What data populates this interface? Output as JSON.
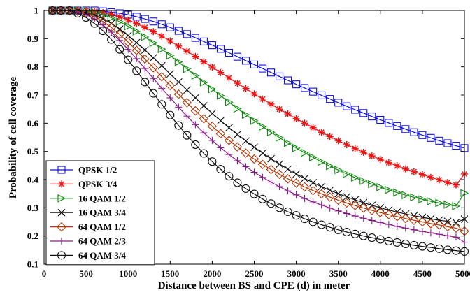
{
  "chart_data": {
    "type": "line",
    "title": "",
    "xlabel": "Distance between BS and CPE (d) in meter",
    "ylabel": "Probability of cell coverage",
    "xlim": [
      0,
      5000
    ],
    "ylim": [
      0.1,
      1
    ],
    "xticks": [
      0,
      500,
      1000,
      1500,
      2000,
      2500,
      3000,
      3500,
      4000,
      4500,
      5000
    ],
    "yticks": [
      0.1,
      0.2,
      0.3,
      0.4,
      0.5,
      0.6,
      0.7,
      0.8,
      0.9,
      1
    ],
    "xtick_labels": [
      "0",
      "500",
      "1000",
      "1500",
      "2000",
      "2500",
      "3000",
      "3500",
      "4000",
      "4500",
      "5000"
    ],
    "ytick_labels": [
      "0.1",
      "0.2",
      "0.3",
      "0.4",
      "0.5",
      "0.6",
      "0.7",
      "0.8",
      "0.9",
      "1"
    ],
    "legend_position": "bottom-left",
    "grid": false,
    "x": [
      100,
      200,
      300,
      400,
      500,
      600,
      700,
      800,
      900,
      1000,
      1100,
      1200,
      1300,
      1400,
      1500,
      1600,
      1700,
      1800,
      1900,
      2000,
      2100,
      2200,
      2300,
      2400,
      2500,
      2600,
      2700,
      2800,
      2900,
      3000,
      3100,
      3200,
      3300,
      3400,
      3500,
      3600,
      3700,
      3800,
      3900,
      4000,
      4100,
      4200,
      4300,
      4400,
      4500,
      4600,
      4700,
      4800,
      4900,
      5000
    ],
    "series": [
      {
        "name": "QPSK 1/2",
        "color": "#1010e0",
        "marker": "square",
        "values": [
          1,
          1,
          1,
          1,
          1,
          1,
          0.997,
          0.994,
          0.99,
          0.985,
          0.978,
          0.97,
          0.961,
          0.951,
          0.94,
          0.928,
          0.916,
          0.903,
          0.89,
          0.877,
          0.864,
          0.85,
          0.836,
          0.822,
          0.808,
          0.794,
          0.78,
          0.766,
          0.752,
          0.738,
          0.725,
          0.712,
          0.699,
          0.686,
          0.673,
          0.66,
          0.648,
          0.636,
          0.624,
          0.612,
          0.601,
          0.59,
          0.579,
          0.568,
          0.558,
          0.548,
          0.538,
          0.529,
          0.52,
          0.512
        ]
      },
      {
        "name": "QPSK 3/4",
        "color": "#ee1111",
        "marker": "asterisk",
        "values": [
          1,
          1,
          1,
          1,
          1,
          0.997,
          0.993,
          0.986,
          0.977,
          0.966,
          0.954,
          0.94,
          0.925,
          0.909,
          0.892,
          0.874,
          0.856,
          0.837,
          0.818,
          0.799,
          0.78,
          0.761,
          0.742,
          0.723,
          0.704,
          0.686,
          0.668,
          0.65,
          0.633,
          0.616,
          0.6,
          0.584,
          0.568,
          0.553,
          0.538,
          0.524,
          0.51,
          0.497,
          0.484,
          0.472,
          0.46,
          0.449,
          0.438,
          0.428,
          0.418,
          0.408,
          0.399,
          0.39,
          0.381,
          0.42
        ]
      },
      {
        "name": "16 QAM 1/2",
        "color": "#118811",
        "marker": "triangle-right",
        "values": [
          1,
          1,
          1,
          1,
          0.998,
          0.993,
          0.985,
          0.974,
          0.96,
          0.944,
          0.926,
          0.906,
          0.885,
          0.863,
          0.84,
          0.817,
          0.793,
          0.769,
          0.745,
          0.721,
          0.698,
          0.675,
          0.652,
          0.63,
          0.609,
          0.588,
          0.568,
          0.549,
          0.53,
          0.512,
          0.495,
          0.479,
          0.463,
          0.448,
          0.434,
          0.42,
          0.407,
          0.395,
          0.384,
          0.373,
          0.363,
          0.354,
          0.345,
          0.337,
          0.33,
          0.323,
          0.317,
          0.311,
          0.306,
          0.352
        ]
      },
      {
        "name": "16 QAM 3/4",
        "color": "#111111",
        "marker": "x",
        "values": [
          1,
          1,
          1,
          0.998,
          0.993,
          0.984,
          0.971,
          0.954,
          0.934,
          0.911,
          0.886,
          0.86,
          0.832,
          0.804,
          0.775,
          0.746,
          0.718,
          0.69,
          0.662,
          0.635,
          0.609,
          0.584,
          0.56,
          0.537,
          0.515,
          0.494,
          0.474,
          0.455,
          0.437,
          0.42,
          0.404,
          0.389,
          0.375,
          0.362,
          0.35,
          0.339,
          0.328,
          0.318,
          0.309,
          0.3,
          0.292,
          0.285,
          0.278,
          0.272,
          0.266,
          0.261,
          0.256,
          0.252,
          0.248,
          0.26
        ]
      },
      {
        "name": "64 QAM 1/2",
        "color": "#b03a0a",
        "marker": "diamond",
        "values": [
          1,
          1,
          1,
          0.997,
          0.99,
          0.978,
          0.961,
          0.94,
          0.915,
          0.888,
          0.859,
          0.828,
          0.797,
          0.765,
          0.734,
          0.703,
          0.673,
          0.644,
          0.616,
          0.589,
          0.563,
          0.539,
          0.516,
          0.494,
          0.473,
          0.454,
          0.436,
          0.419,
          0.403,
          0.388,
          0.374,
          0.361,
          0.349,
          0.338,
          0.327,
          0.317,
          0.308,
          0.299,
          0.291,
          0.283,
          0.276,
          0.269,
          0.262,
          0.256,
          0.25,
          0.244,
          0.239,
          0.233,
          0.228,
          0.217
        ]
      },
      {
        "name": "64 QAM 2/3",
        "color": "#8a1a8a",
        "marker": "plus",
        "values": [
          1,
          1,
          1,
          0.995,
          0.985,
          0.97,
          0.949,
          0.923,
          0.894,
          0.862,
          0.829,
          0.794,
          0.759,
          0.724,
          0.69,
          0.657,
          0.625,
          0.595,
          0.566,
          0.539,
          0.513,
          0.489,
          0.467,
          0.446,
          0.426,
          0.408,
          0.391,
          0.375,
          0.36,
          0.346,
          0.333,
          0.321,
          0.31,
          0.299,
          0.289,
          0.28,
          0.271,
          0.263,
          0.255,
          0.248,
          0.241,
          0.234,
          0.228,
          0.222,
          0.216,
          0.211,
          0.206,
          0.201,
          0.196,
          0.178
        ]
      },
      {
        "name": "64 QAM 3/4",
        "color": "#111111",
        "marker": "circle",
        "values": [
          1,
          1,
          1,
          0.99,
          0.975,
          0.954,
          0.928,
          0.897,
          0.862,
          0.825,
          0.786,
          0.746,
          0.706,
          0.667,
          0.629,
          0.592,
          0.557,
          0.524,
          0.493,
          0.464,
          0.437,
          0.412,
          0.389,
          0.368,
          0.349,
          0.331,
          0.315,
          0.3,
          0.286,
          0.273,
          0.261,
          0.25,
          0.24,
          0.231,
          0.222,
          0.214,
          0.207,
          0.2,
          0.194,
          0.188,
          0.182,
          0.177,
          0.172,
          0.167,
          0.163,
          0.159,
          0.155,
          0.151,
          0.148,
          0.145
        ]
      }
    ]
  }
}
